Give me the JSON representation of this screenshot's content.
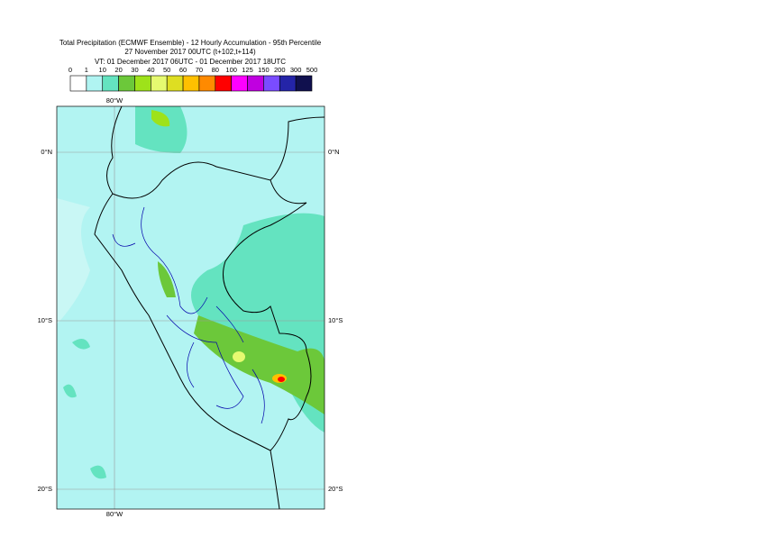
{
  "header": {
    "title": "Total Precipitation (ECMWF Ensemble) - 12 Hourly Accumulation - 95th Percentile",
    "base_time": "27 November 2017 00UTC (t+102,t+114)",
    "valid_time": "VT: 01 December 2017 06UTC - 01 December 2017 18UTC"
  },
  "legend": {
    "levels": [
      0,
      1,
      10,
      20,
      30,
      40,
      50,
      60,
      70,
      80,
      100,
      125,
      150,
      200,
      300,
      500
    ],
    "colors": [
      "#ffffff",
      "#b0f4f2",
      "#64e3c0",
      "#6cc83a",
      "#9ee21a",
      "#e6fa70",
      "#dede22",
      "#ffc000",
      "#ff8a00",
      "#ff0000",
      "#ff00ff",
      "#c000e0",
      "#7a4cff",
      "#2424a8",
      "#10104e"
    ]
  },
  "map": {
    "lon_label": "80°W",
    "lat_labels": [
      "0°N",
      "10°S",
      "20°S"
    ]
  }
}
